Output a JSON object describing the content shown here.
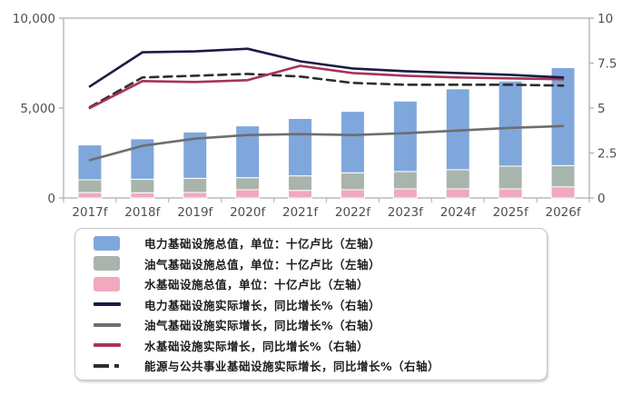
{
  "chart_data": {
    "type": "bar",
    "subtype": "stacked-bars-with-lines-dual-axis",
    "title": "",
    "categories": [
      "2017f",
      "2018f",
      "2019f",
      "2020f",
      "2021f",
      "2022f",
      "2023f",
      "2024f",
      "2025f",
      "2026f"
    ],
    "left_axis": {
      "tick_values": [
        0,
        5000,
        10000
      ],
      "tick_labels": [
        "0",
        "5,000",
        "10,000"
      ],
      "min": 0,
      "max": 10000
    },
    "right_axis": {
      "tick_values": [
        0,
        2.5,
        5,
        7.5,
        10
      ],
      "tick_labels": [
        "0",
        "2.5",
        "5",
        "7.5",
        "10"
      ],
      "min": 0,
      "max": 10
    },
    "legend_position": "bottom",
    "grid": false,
    "bar_series": [
      {
        "name": "电力基础设施总值，单位：十亿卢比（左轴）",
        "axis": "left",
        "color": "#7FA7DC",
        "values": [
          1940,
          2250,
          2580,
          2880,
          3190,
          3420,
          3920,
          4500,
          4730,
          5450
        ]
      },
      {
        "name": "油气基础设施总值，单位：十亿卢比（左轴）",
        "axis": "left",
        "color": "#A9B4AC",
        "values": [
          710,
          755,
          785,
          675,
          810,
          945,
          965,
          1065,
          1265,
          1180
        ]
      },
      {
        "name": "水基础设施总值，单位：十亿卢比（左轴）",
        "axis": "left",
        "color": "#F0A9BD",
        "values": [
          300,
          285,
          305,
          455,
          420,
          455,
          505,
          505,
          505,
          620
        ]
      }
    ],
    "bar_stack_order_bottom_to_top": [
      "水基础设施总值",
      "油气基础设施总值",
      "电力基础设施总值"
    ],
    "line_series": [
      {
        "name": "电力基础设施实际增长，同比增长%（右轴）",
        "axis": "right",
        "color": "#1B1B45",
        "dash": "",
        "values": [
          6.2,
          8.1,
          8.15,
          8.3,
          7.6,
          7.2,
          7.05,
          6.95,
          6.85,
          6.7
        ]
      },
      {
        "name": "油气基础设施实际增长，同比增长%（右轴）",
        "axis": "right",
        "color": "#6E6E6E",
        "dash": "",
        "values": [
          2.1,
          2.9,
          3.3,
          3.5,
          3.55,
          3.5,
          3.6,
          3.75,
          3.9,
          4.0
        ]
      },
      {
        "name": "水基础设施实际增长，同比增长%（右轴）",
        "axis": "right",
        "color": "#A83457",
        "dash": "",
        "values": [
          5.0,
          6.5,
          6.45,
          6.55,
          7.35,
          6.95,
          6.8,
          6.7,
          6.65,
          6.6
        ]
      },
      {
        "name": "能源与公共事业基础设施实际增长，同比增长%（右轴）",
        "axis": "right",
        "color": "#2E2E2E",
        "dash": "9,6",
        "values": [
          5.05,
          6.7,
          6.8,
          6.9,
          6.75,
          6.4,
          6.3,
          6.3,
          6.3,
          6.25
        ]
      }
    ],
    "frame_color": "#b3b6b9",
    "axis_text_color": "#4d4f52"
  }
}
